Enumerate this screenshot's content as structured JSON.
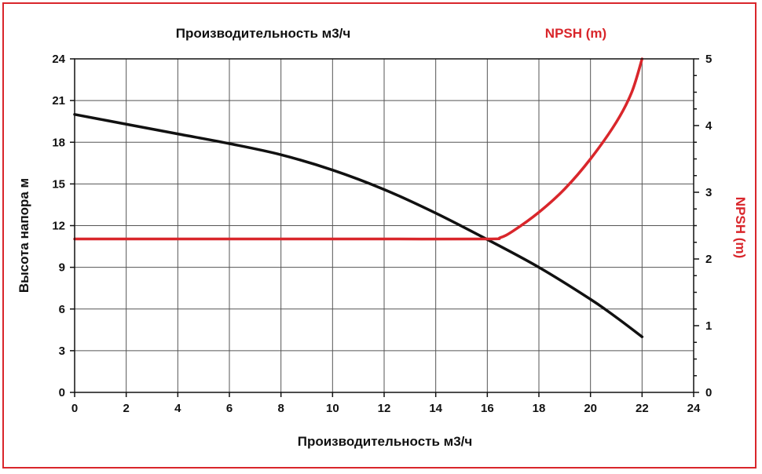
{
  "chart_data": {
    "type": "line",
    "top_left_label": "Производительность м3/ч",
    "top_right_label": "NPSH (m)",
    "xlabel": "Производительность м3/ч",
    "ylabel": "Высота напора м",
    "y2label": "NPSH (m)",
    "xlim": [
      0,
      24
    ],
    "ylim": [
      0,
      24
    ],
    "y2lim": [
      0,
      5
    ],
    "x_ticks": [
      0,
      2,
      4,
      6,
      8,
      10,
      12,
      14,
      16,
      18,
      20,
      22,
      24
    ],
    "y_ticks": [
      0,
      3,
      6,
      9,
      12,
      15,
      18,
      21,
      24
    ],
    "y2_ticks": [
      0,
      1,
      2,
      3,
      4,
      5
    ],
    "grid": true,
    "series": [
      {
        "axis": "left",
        "color": "#111111",
        "x": [
          0,
          2,
          4,
          6,
          8,
          10,
          12,
          14,
          16,
          18,
          20,
          21,
          22
        ],
        "y": [
          20,
          19.3,
          18.6,
          17.9,
          17.1,
          16,
          14.6,
          12.9,
          11,
          9,
          6.7,
          5.4,
          4
        ]
      },
      {
        "axis": "right",
        "color": "#d9262b",
        "x": [
          0,
          4,
          8,
          12,
          16,
          16.5,
          17,
          18,
          19,
          20,
          21,
          21.6,
          22
        ],
        "y": [
          2.3,
          2.3,
          2.3,
          2.3,
          2.3,
          2.32,
          2.42,
          2.7,
          3.05,
          3.5,
          4.05,
          4.5,
          5.0
        ]
      }
    ]
  }
}
